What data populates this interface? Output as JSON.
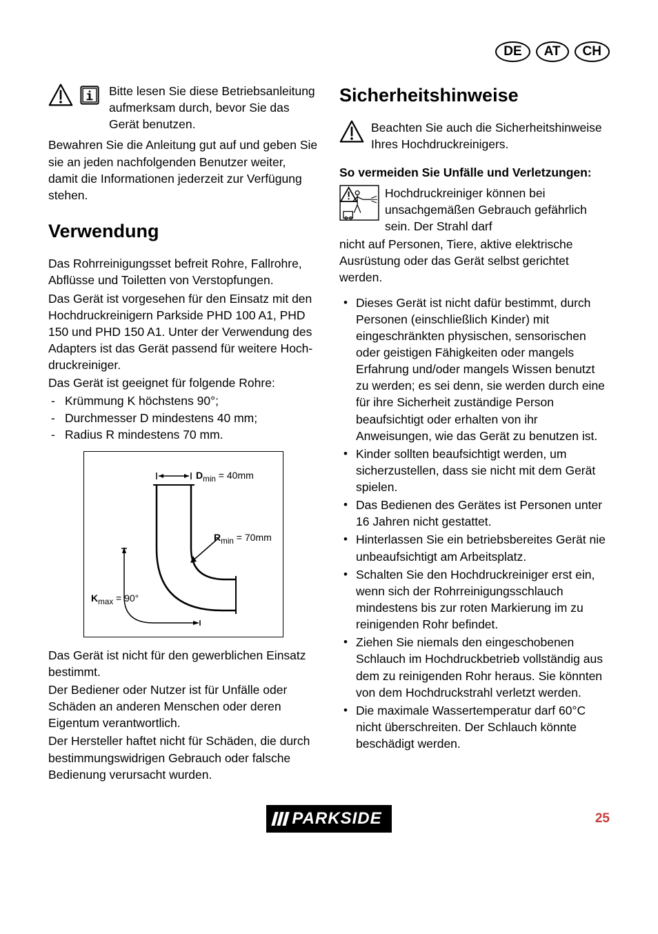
{
  "countries": [
    "DE",
    "AT",
    "CH"
  ],
  "intro": {
    "p1": "Bitte lesen Sie diese Be­triebsanleitung aufmerksam durch, bevor Sie das Gerät benutzen.",
    "p2": "Bewahren Sie die Anleitung gut auf und ge­ben Sie sie an jeden nachfolgenden Benut­zer weiter, damit die Informationen jederzeit zur Verfügung stehen."
  },
  "verwendung": {
    "heading": "Verwendung",
    "p1": "Das Rohrreinigungsset befreit Rohre, Fallrohre, Abflüsse und Toiletten von Ver­stopfungen.",
    "p2": "Das Gerät ist vorgesehen für den Einsatz mit den Hochdruckreinigern Parkside PHD 100 A1, PHD 150 und PHD 150 A1. Unter der Verwendung des Adapters ist das Gerät passend für weitere Hoch­druckreiniger.",
    "p3": "Das Gerät ist geeignet für folgende Rohre:",
    "specs": [
      "Krümmung K höchstens 90°;",
      "Durchmesser D mindestens 40 mm;",
      "Radius R mindestens 70 mm."
    ],
    "diagram": {
      "d_label_html": "<b>D</b><sub>min</sub> = 40mm",
      "r_label_html": "<b>R</b><sub>min</sub> = 70mm",
      "k_label_html": "<b>K</b><sub>max</sub> = 90°"
    },
    "p4": "Das Gerät ist nicht für den gewerblichen Einsatz bestimmt.",
    "p5": "Der Bediener oder Nutzer ist für Unfälle oder Schäden an anderen Menschen oder deren Eigentum verantwortlich.",
    "p6": "Der Hersteller haftet nicht für Schäden, die durch bestimmungswidrigen Gebrauch oder falsche Bedienung verursacht wurden."
  },
  "sicherheit": {
    "heading": "Sicherheitshinweise",
    "note": "Beachten Sie auch die Sicherheits­hinweise Ihres Hochdruckreinigers.",
    "sub": "So vermeiden Sie Unfälle und Verlet­zungen:",
    "spray_p1": "Hochdruckreiniger können bei unsachgemäßen Gebrauch gefährlich sein. Der Strahl darf",
    "spray_p2": "nicht auf Personen, Tiere, aktive elek­trische Ausrüstung oder das Gerät selbst gerichtet werden.",
    "bullets": [
      "Dieses Gerät ist nicht dafür bestimmt, durch Personen (einschließlich Kinder) mit eingeschränkten physischen, senso­rischen oder geistigen Fähigkeiten oder mangels Erfahrung und/oder mangels Wissen benutzt zu werden; es sei denn, sie werden durch eine für ihre Sicher­heit zuständige Person beaufsichtigt oder erhalten von ihr Anweisungen, wie das Gerät zu benutzen ist.",
      "Kinder sollten beaufsichtigt werden, um sicherzustellen, dass sie nicht mit dem Gerät spielen.",
      "Das Bedienen des Gerätes ist Perso­nen unter 16 Jahren nicht gestattet.",
      "Hinterlassen Sie ein betriebsbereites Ge­rät nie unbeaufsichtigt am Arbeitsplatz.",
      "Schalten Sie den Hochdruckreiniger erst ein, wenn sich der Rohrreinigungs­schlauch mindestens bis zur roten Markierung im zu reinigenden Rohr befindet.",
      "Ziehen Sie niemals den eingescho­benen Schlauch im Hochdruckbetrieb vollständig aus dem zu reinigenden Rohr heraus. Sie könnten von dem Hochdruckstrahl verletzt werden.",
      "Die maximale Wassertemperatur darf 60°C nicht überschreiten. Der Schlauch könnte beschädigt werden."
    ]
  },
  "footer": {
    "brand": "PARKSIDE",
    "page": "25"
  }
}
